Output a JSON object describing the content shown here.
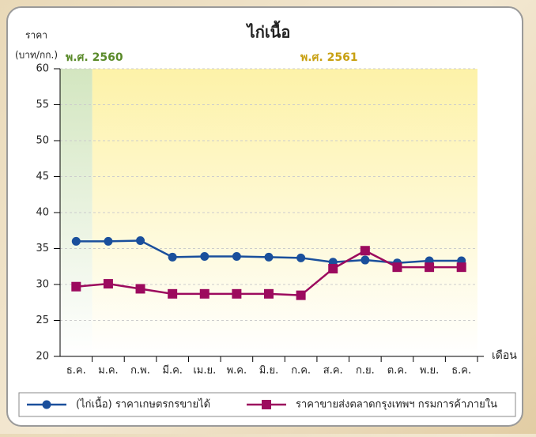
{
  "chart_data": {
    "type": "line",
    "title": "ไก่เนื้อ",
    "y_label": [
      "ราคา",
      "(บาท/กก.)"
    ],
    "x_label": "เดือน",
    "annotations": [
      "พ.ศ. 2560",
      "พ.ศ. 2561"
    ],
    "categories": [
      "ธ.ค.",
      "ม.ค.",
      "ก.พ.",
      "มี.ค.",
      "เม.ย.",
      "พ.ค.",
      "มิ.ย.",
      "ก.ค.",
      "ส.ค.",
      "ก.ย.",
      "ต.ค.",
      "พ.ย.",
      "ธ.ค."
    ],
    "series": [
      {
        "name": "(ไก่เนื้อ) ราคาเกษตรกรขายได้",
        "color": "#1a4f9c",
        "marker": "circle",
        "values": [
          36.0,
          36.0,
          36.1,
          33.8,
          33.9,
          33.9,
          33.8,
          33.7,
          33.1,
          33.4,
          33.0,
          33.3,
          33.3
        ]
      },
      {
        "name": "ราคาขายส่งตลาดกรุงเทพฯ กรมการค้าภายใน",
        "color": "#9c0a5e",
        "marker": "square",
        "values": [
          29.7,
          30.1,
          29.4,
          28.7,
          28.7,
          28.7,
          28.7,
          28.5,
          32.2,
          34.7,
          32.4,
          32.4,
          32.4
        ]
      }
    ],
    "ylim": [
      20,
      60
    ],
    "yticks": [
      20,
      25,
      30,
      35,
      40,
      45,
      50,
      55,
      60
    ],
    "grid": true
  }
}
